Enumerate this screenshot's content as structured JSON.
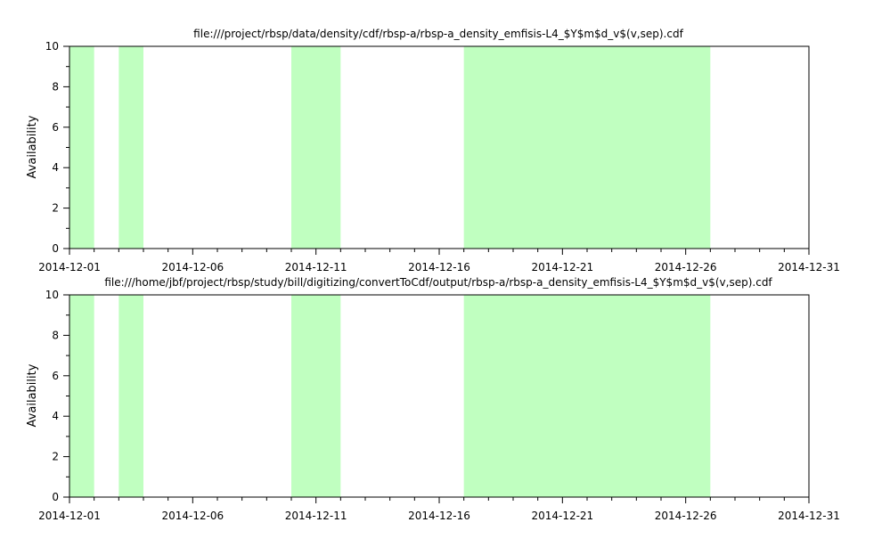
{
  "colors": {
    "fill": "#c0ffc0",
    "axis": "#000000"
  },
  "chart_data": [
    {
      "type": "area",
      "title": "file:///project/rbsp/data/density/cdf/rbsp-a/rbsp-a_density_emfisis-L4_$Y$m$d_v$(v,sep).cdf",
      "ylabel": "Availability",
      "xlim": [
        "2014-12-01",
        "2014-12-31"
      ],
      "ylim": [
        0,
        10
      ],
      "x_ticks": [
        "2014-12-01",
        "2014-12-06",
        "2014-12-11",
        "2014-12-16",
        "2014-12-21",
        "2014-12-26",
        "2014-12-31"
      ],
      "y_ticks": [
        "0",
        "2",
        "4",
        "6",
        "8",
        "10"
      ],
      "intervals": [
        {
          "start": "2014-12-01",
          "end": "2014-12-02"
        },
        {
          "start": "2014-12-03",
          "end": "2014-12-04"
        },
        {
          "start": "2014-12-10",
          "end": "2014-12-12"
        },
        {
          "start": "2014-12-17",
          "end": "2014-12-27"
        }
      ],
      "grid": false
    },
    {
      "type": "area",
      "title": "file:///home/jbf/project/rbsp/study/bill/digitizing/convertToCdf/output/rbsp-a/rbsp-a_density_emfisis-L4_$Y$m$d_v$(v,sep).cdf",
      "ylabel": "Availability",
      "xlim": [
        "2014-12-01",
        "2014-12-31"
      ],
      "ylim": [
        0,
        10
      ],
      "x_ticks": [
        "2014-12-01",
        "2014-12-06",
        "2014-12-11",
        "2014-12-16",
        "2014-12-21",
        "2014-12-26",
        "2014-12-31"
      ],
      "y_ticks": [
        "0",
        "2",
        "4",
        "6",
        "8",
        "10"
      ],
      "intervals": [
        {
          "start": "2014-12-01",
          "end": "2014-12-02"
        },
        {
          "start": "2014-12-03",
          "end": "2014-12-04"
        },
        {
          "start": "2014-12-10",
          "end": "2014-12-12"
        },
        {
          "start": "2014-12-17",
          "end": "2014-12-27"
        }
      ],
      "grid": false
    }
  ]
}
